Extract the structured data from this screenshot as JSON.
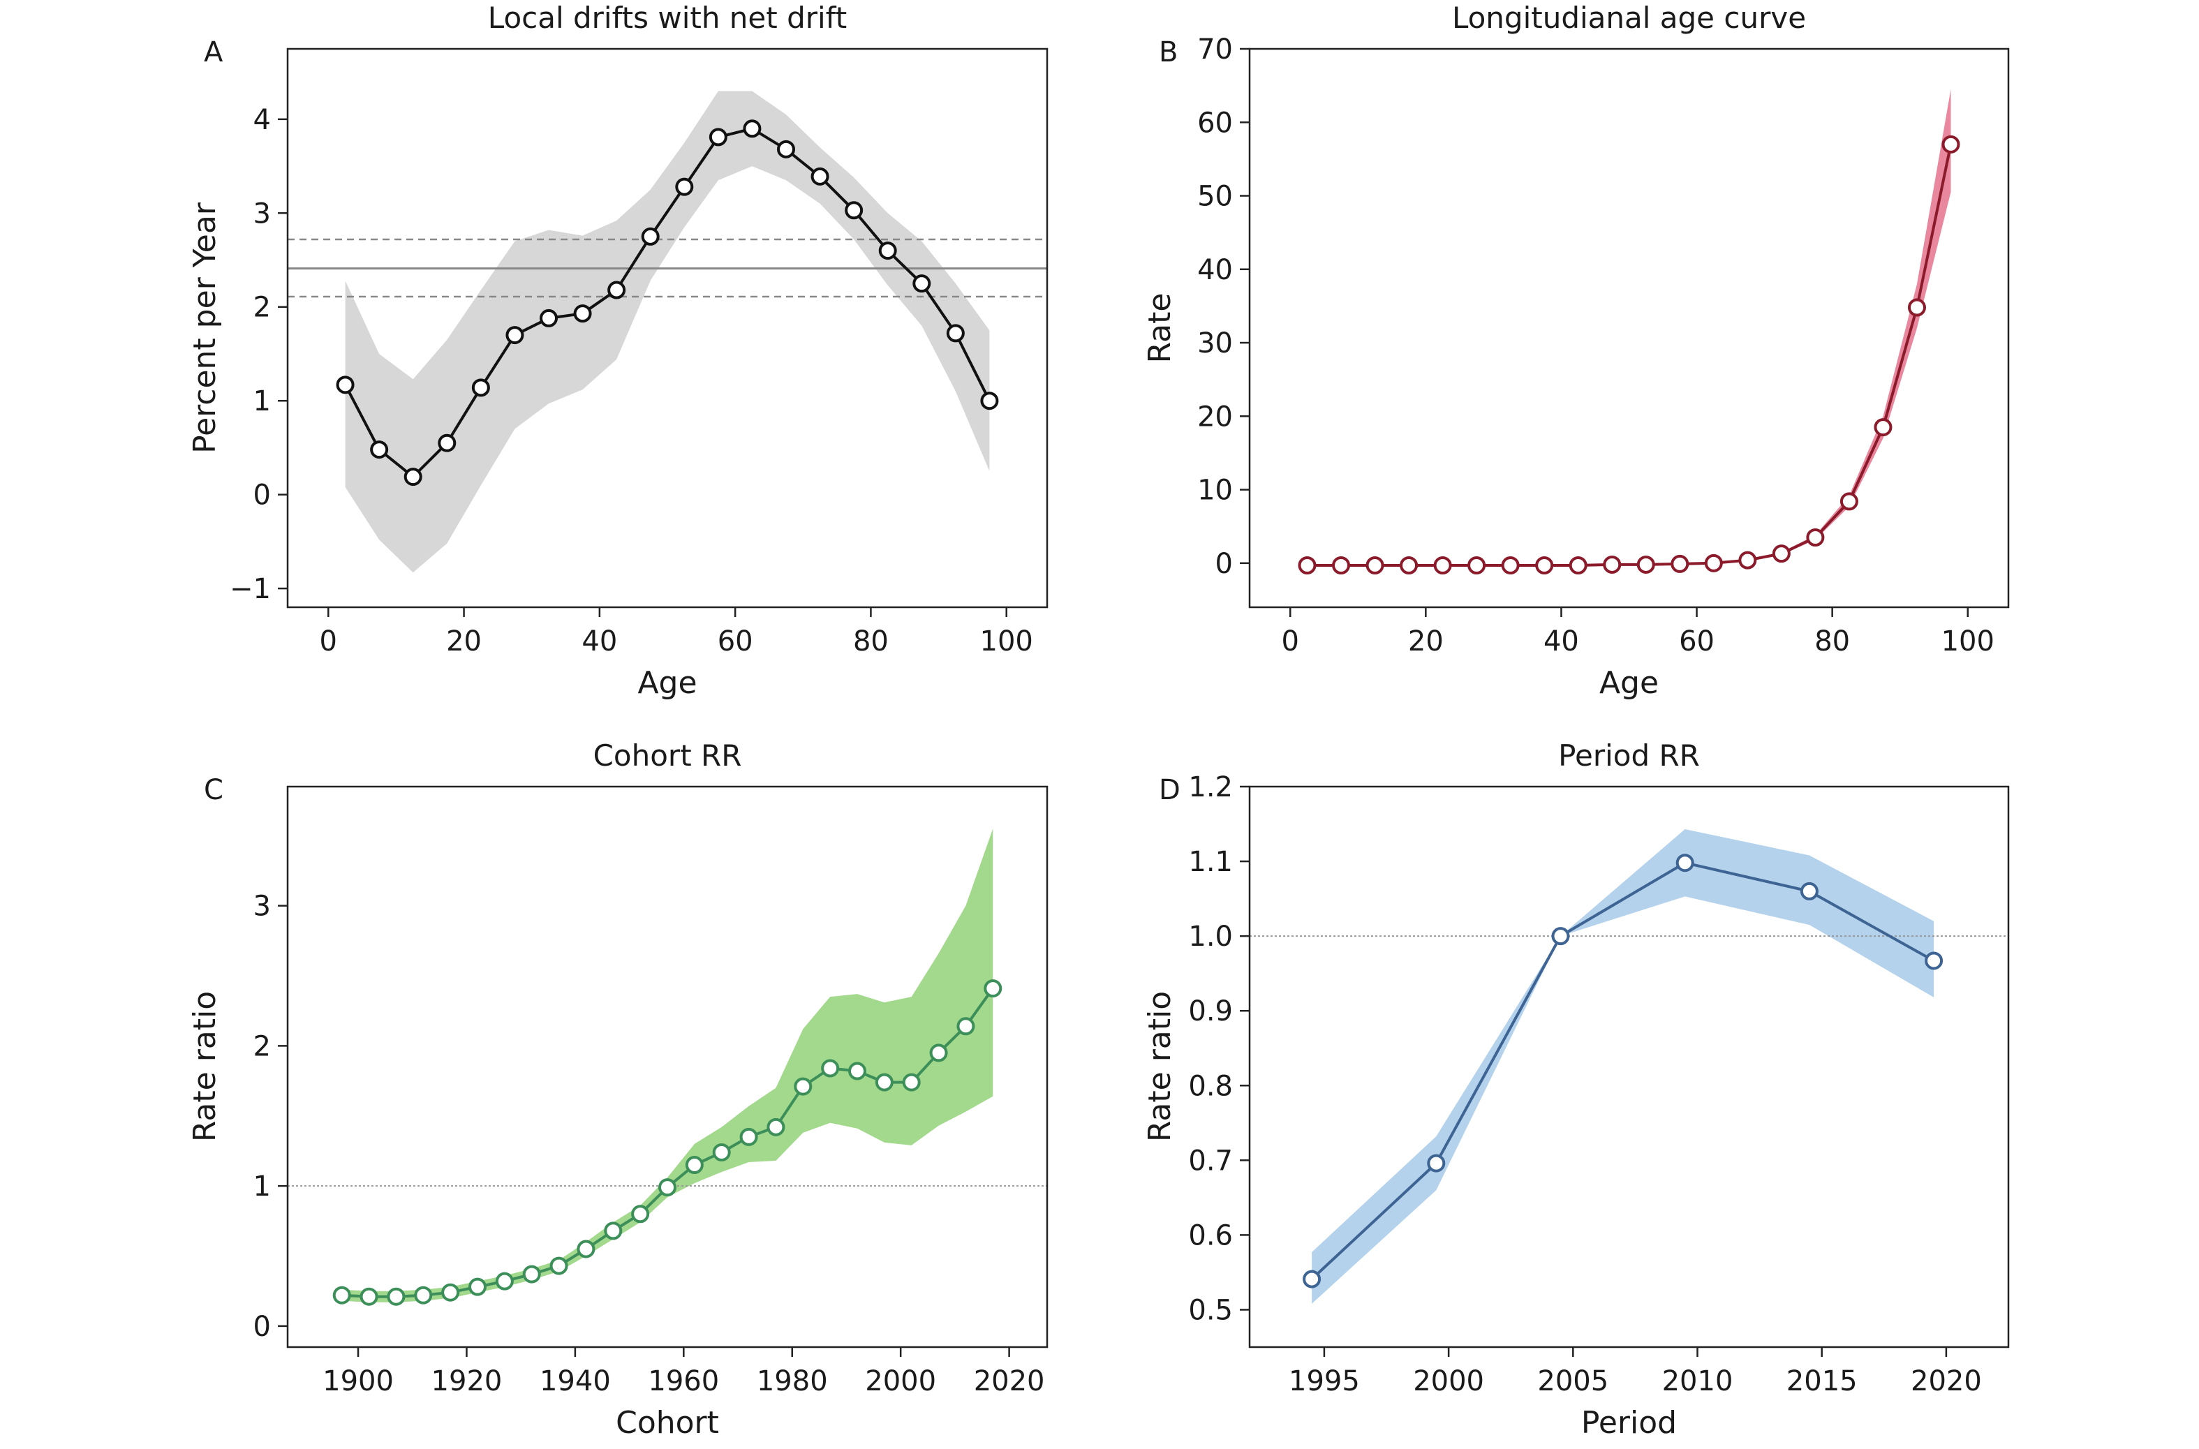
{
  "figure": {
    "panels": [
      "A",
      "B",
      "C",
      "D"
    ]
  },
  "chart_data": [
    {
      "panel": "A",
      "type": "line",
      "title": "Local drifts with net drift",
      "xlabel": "Age",
      "ylabel": "Percent per Year",
      "xlim": [
        -6,
        106
      ],
      "ylim": [
        -1.2,
        4.75
      ],
      "xticks": [
        0,
        20,
        40,
        60,
        80,
        100
      ],
      "yticks": [
        -1,
        0,
        1,
        2,
        3,
        4
      ],
      "ytick_labels": [
        "−1",
        "0",
        "1",
        "2",
        "3",
        "4"
      ],
      "x": [
        2.5,
        7.5,
        12.5,
        17.5,
        22.5,
        27.5,
        32.5,
        37.5,
        42.5,
        47.5,
        52.5,
        57.5,
        62.5,
        67.5,
        72.5,
        77.5,
        82.5,
        87.5,
        92.5,
        97.5
      ],
      "y": [
        1.17,
        0.48,
        0.19,
        0.55,
        1.14,
        1.7,
        1.88,
        1.93,
        2.18,
        2.75,
        3.28,
        3.81,
        3.9,
        3.68,
        3.39,
        3.03,
        2.6,
        2.25,
        1.72,
        1.0
      ],
      "ci_lower": [
        0.08,
        -0.48,
        -0.83,
        -0.52,
        0.1,
        0.7,
        0.97,
        1.12,
        1.44,
        2.28,
        2.85,
        3.35,
        3.5,
        3.35,
        3.1,
        2.72,
        2.23,
        1.8,
        1.1,
        0.25
      ],
      "ci_upper": [
        2.28,
        1.5,
        1.23,
        1.65,
        2.18,
        2.7,
        2.82,
        2.76,
        2.92,
        3.25,
        3.75,
        4.3,
        4.3,
        4.05,
        3.7,
        3.38,
        3.0,
        2.7,
        2.25,
        1.75
      ],
      "reference_lines": [
        {
          "value": 2.41,
          "style": "solid"
        },
        {
          "value": 2.72,
          "style": "dashed"
        },
        {
          "value": 2.11,
          "style": "dashed"
        }
      ],
      "colors": {
        "line": "#111111",
        "band": "#d7d7d7",
        "marker_edge": "#111111",
        "ref": "#888888"
      }
    },
    {
      "panel": "B",
      "type": "line",
      "title": "Longitudianal age curve",
      "xlabel": "Age",
      "ylabel": "Rate",
      "xlim": [
        -6,
        106
      ],
      "ylim": [
        -6,
        70
      ],
      "xticks": [
        0,
        20,
        40,
        60,
        80,
        100
      ],
      "yticks": [
        0,
        10,
        20,
        30,
        40,
        50,
        60,
        70
      ],
      "ytick_labels": [
        "0",
        "10",
        "20",
        "30",
        "40",
        "50",
        "60",
        "70"
      ],
      "x": [
        2.5,
        7.5,
        12.5,
        17.5,
        22.5,
        27.5,
        32.5,
        37.5,
        42.5,
        47.5,
        52.5,
        57.5,
        62.5,
        67.5,
        72.5,
        77.5,
        82.5,
        87.5,
        92.5,
        97.5
      ],
      "y": [
        -0.3,
        -0.3,
        -0.3,
        -0.3,
        -0.3,
        -0.3,
        -0.3,
        -0.3,
        -0.3,
        -0.2,
        -0.2,
        -0.1,
        0.0,
        0.4,
        1.3,
        3.5,
        8.4,
        18.5,
        34.8,
        57.0
      ],
      "ci_lower": [
        -0.4,
        -0.4,
        -0.4,
        -0.4,
        -0.4,
        -0.4,
        -0.4,
        -0.4,
        -0.4,
        -0.3,
        -0.3,
        -0.2,
        -0.1,
        0.3,
        1.1,
        3.2,
        7.7,
        17.0,
        32.0,
        50.5
      ],
      "ci_upper": [
        -0.2,
        -0.2,
        -0.2,
        -0.2,
        -0.2,
        -0.2,
        -0.2,
        -0.2,
        -0.2,
        -0.1,
        -0.1,
        0.0,
        0.1,
        0.5,
        1.5,
        3.8,
        9.2,
        20.0,
        38.0,
        64.5
      ],
      "colors": {
        "line": "#8b1a2b",
        "band": "#e8879e",
        "marker_edge": "#8b1a2b"
      }
    },
    {
      "panel": "C",
      "type": "line",
      "title": "Cohort RR",
      "xlabel": "Cohort",
      "ylabel": "Rate ratio",
      "xlim": [
        1887,
        2027
      ],
      "ylim": [
        -0.15,
        3.85
      ],
      "xticks": [
        1900,
        1920,
        1940,
        1960,
        1980,
        2000,
        2020
      ],
      "yticks": [
        0,
        1,
        2,
        3
      ],
      "ytick_labels": [
        "0",
        "1",
        "2",
        "3"
      ],
      "x": [
        1897,
        1902,
        1907,
        1912,
        1917,
        1922,
        1927,
        1932,
        1937,
        1942,
        1947,
        1952,
        1957,
        1962,
        1967,
        1972,
        1977,
        1982,
        1987,
        1992,
        1997,
        2002,
        2007,
        2012,
        2017
      ],
      "y": [
        0.22,
        0.21,
        0.21,
        0.22,
        0.24,
        0.28,
        0.32,
        0.37,
        0.43,
        0.55,
        0.68,
        0.8,
        0.99,
        1.15,
        1.24,
        1.35,
        1.42,
        1.71,
        1.84,
        1.82,
        1.74,
        1.74,
        1.95,
        2.14,
        2.41
      ],
      "ci_lower": [
        0.18,
        0.17,
        0.17,
        0.18,
        0.2,
        0.24,
        0.28,
        0.33,
        0.39,
        0.5,
        0.62,
        0.74,
        0.92,
        1.02,
        1.1,
        1.17,
        1.18,
        1.38,
        1.45,
        1.41,
        1.31,
        1.29,
        1.43,
        1.53,
        1.64
      ],
      "ci_upper": [
        0.26,
        0.25,
        0.25,
        0.26,
        0.28,
        0.32,
        0.36,
        0.41,
        0.47,
        0.6,
        0.74,
        0.86,
        1.06,
        1.3,
        1.42,
        1.57,
        1.7,
        2.12,
        2.35,
        2.37,
        2.31,
        2.35,
        2.66,
        3.0,
        3.55
      ],
      "reference_lines": [
        {
          "value": 1,
          "style": "dotted"
        }
      ],
      "colors": {
        "line": "#3d8f5a",
        "band": "#a3d98c",
        "marker_edge": "#3d8f5a",
        "ref": "#999999"
      }
    },
    {
      "panel": "D",
      "type": "line",
      "title": "Period RR",
      "xlabel": "Period",
      "ylabel": "Rate ratio",
      "xlim": [
        1992,
        2022.5
      ],
      "ylim": [
        0.45,
        1.2
      ],
      "xticks": [
        1995,
        2000,
        2005,
        2010,
        2015,
        2020
      ],
      "yticks": [
        0.5,
        0.6,
        0.7,
        0.8,
        0.9,
        1.0,
        1.1,
        1.2
      ],
      "ytick_labels": [
        "0.5",
        "0.6",
        "0.7",
        "0.8",
        "0.9",
        "1.0",
        "1.1",
        "1.2"
      ],
      "x": [
        1994.5,
        1999.5,
        2004.5,
        2009.5,
        2014.5,
        2019.5
      ],
      "y": [
        0.541,
        0.696,
        1.0,
        1.098,
        1.06,
        0.967
      ],
      "ci_lower": [
        0.508,
        0.66,
        1.0,
        1.053,
        1.015,
        0.918
      ],
      "ci_upper": [
        0.577,
        0.732,
        1.0,
        1.143,
        1.108,
        1.02
      ],
      "reference_lines": [
        {
          "value": 1.0,
          "style": "dotted"
        }
      ],
      "colors": {
        "line": "#3e6494",
        "band": "#b4d2ec",
        "marker_edge": "#3e6494",
        "ref": "#999999"
      }
    }
  ]
}
